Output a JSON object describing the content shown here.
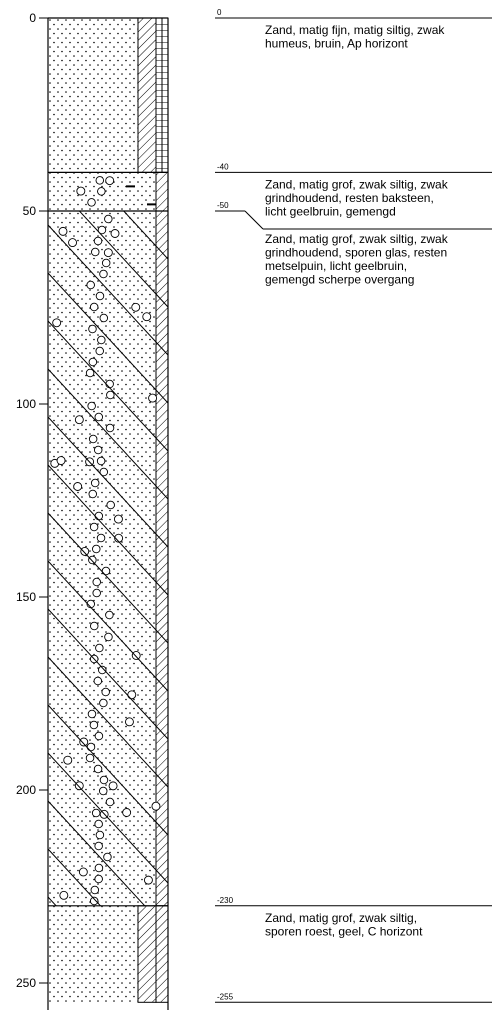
{
  "axis": {
    "range": [
      0,
      255
    ],
    "ticks": [
      {
        "value": 0,
        "label": "0"
      },
      {
        "value": 50,
        "label": "50"
      },
      {
        "value": 100,
        "label": "100"
      },
      {
        "value": 150,
        "label": "150"
      },
      {
        "value": 200,
        "label": "200"
      },
      {
        "value": 250,
        "label": "250"
      }
    ]
  },
  "layers": [
    {
      "top": 0,
      "bottom": 40,
      "top_label": "0",
      "lines": [
        "Zand, matig fijn, matig siltig, zwak",
        "humeus, bruin, Ap horizont"
      ],
      "pattern": "sand-fine",
      "side_pattern": "humus"
    },
    {
      "top": 40,
      "bottom": 50,
      "top_label": "-40",
      "lines": [
        "Zand, matig grof, zwak siltig, zwak",
        "grindhoudend, resten baksteen,",
        "licht geelbruin, gemengd"
      ],
      "pattern": "sand-gravel-debris",
      "side_pattern": "hatch"
    },
    {
      "top": 50,
      "bottom": 230,
      "top_label": "-50",
      "lines": [
        "Zand, matig grof, zwak siltig, zwak",
        "grindhoudend, sporen glas, resten",
        "metselpuin, licht geelbruin,",
        "gemengd scherpe overgang"
      ],
      "pattern": "sand-gravel-hatched",
      "side_pattern": "hatch"
    },
    {
      "top": 230,
      "bottom": 255,
      "top_label": "-230",
      "lines": [
        "Zand, matig grof, zwak siltig,",
        "sporen roest, geel, C horizont"
      ],
      "pattern": "sand-fine",
      "side_pattern": "hatch"
    }
  ],
  "bottom_label": "-255"
}
